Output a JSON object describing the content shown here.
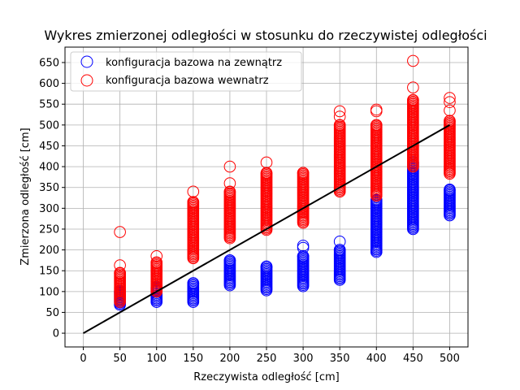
{
  "chart_data": {
    "type": "scatter",
    "title": "Wykres zmierzonej odległości w stosunku do rzeczywistej odległości",
    "xlabel": "Rzeczywista odległość [cm]",
    "ylabel": "Zmierzona odległość [cm]",
    "xlim": [
      -25,
      525
    ],
    "ylim": [
      -33,
      687
    ],
    "xticks": [
      0,
      50,
      100,
      150,
      200,
      250,
      300,
      350,
      400,
      450,
      500
    ],
    "yticks": [
      0,
      50,
      100,
      150,
      200,
      250,
      300,
      350,
      400,
      450,
      500,
      550,
      600,
      650
    ],
    "grid": true,
    "legend_position": "top-left",
    "series": [
      {
        "name": "konfiguracja bazowa na zewnątrz",
        "color": "#0000ff",
        "marker": "open-circle",
        "groups": [
          {
            "x": 50,
            "min": 68,
            "max": 100
          },
          {
            "x": 100,
            "min": 75,
            "max": 110
          },
          {
            "x": 150,
            "min": 75,
            "max": 120
          },
          {
            "x": 200,
            "min": 115,
            "max": 175
          },
          {
            "x": 250,
            "min": 103,
            "max": 160
          },
          {
            "x": 300,
            "min": 113,
            "max": 185,
            "outliers": [
              205,
              210
            ]
          },
          {
            "x": 350,
            "min": 128,
            "max": 200,
            "outliers": [
              220
            ]
          },
          {
            "x": 400,
            "min": 195,
            "max": 320
          },
          {
            "x": 450,
            "min": 250,
            "max": 410
          },
          {
            "x": 500,
            "min": 283,
            "max": 345
          }
        ]
      },
      {
        "name": "konfiguracja bazowa wewnatrz",
        "color": "#ff0000",
        "marker": "open-circle",
        "groups": [
          {
            "x": 50,
            "min": 75,
            "max": 145,
            "outliers": [
              163,
              243
            ]
          },
          {
            "x": 100,
            "min": 100,
            "max": 170,
            "outliers": [
              185
            ]
          },
          {
            "x": 150,
            "min": 180,
            "max": 315,
            "outliers": [
              340
            ]
          },
          {
            "x": 200,
            "min": 228,
            "max": 340,
            "outliers": [
              360,
              400
            ]
          },
          {
            "x": 250,
            "min": 248,
            "max": 385,
            "outliers": [
              410
            ]
          },
          {
            "x": 300,
            "min": 265,
            "max": 385
          },
          {
            "x": 350,
            "min": 340,
            "max": 500,
            "outliers": [
              520,
              533
            ]
          },
          {
            "x": 400,
            "min": 330,
            "max": 500,
            "outliers": [
              533,
              537
            ]
          },
          {
            "x": 450,
            "min": 400,
            "max": 560,
            "outliers": [
              590,
              654
            ]
          },
          {
            "x": 500,
            "min": 383,
            "max": 510,
            "outliers": [
              535,
              555,
              565
            ]
          }
        ]
      }
    ],
    "reference_line": {
      "color": "#000000",
      "x": [
        0,
        500
      ],
      "y": [
        0,
        500
      ]
    }
  }
}
